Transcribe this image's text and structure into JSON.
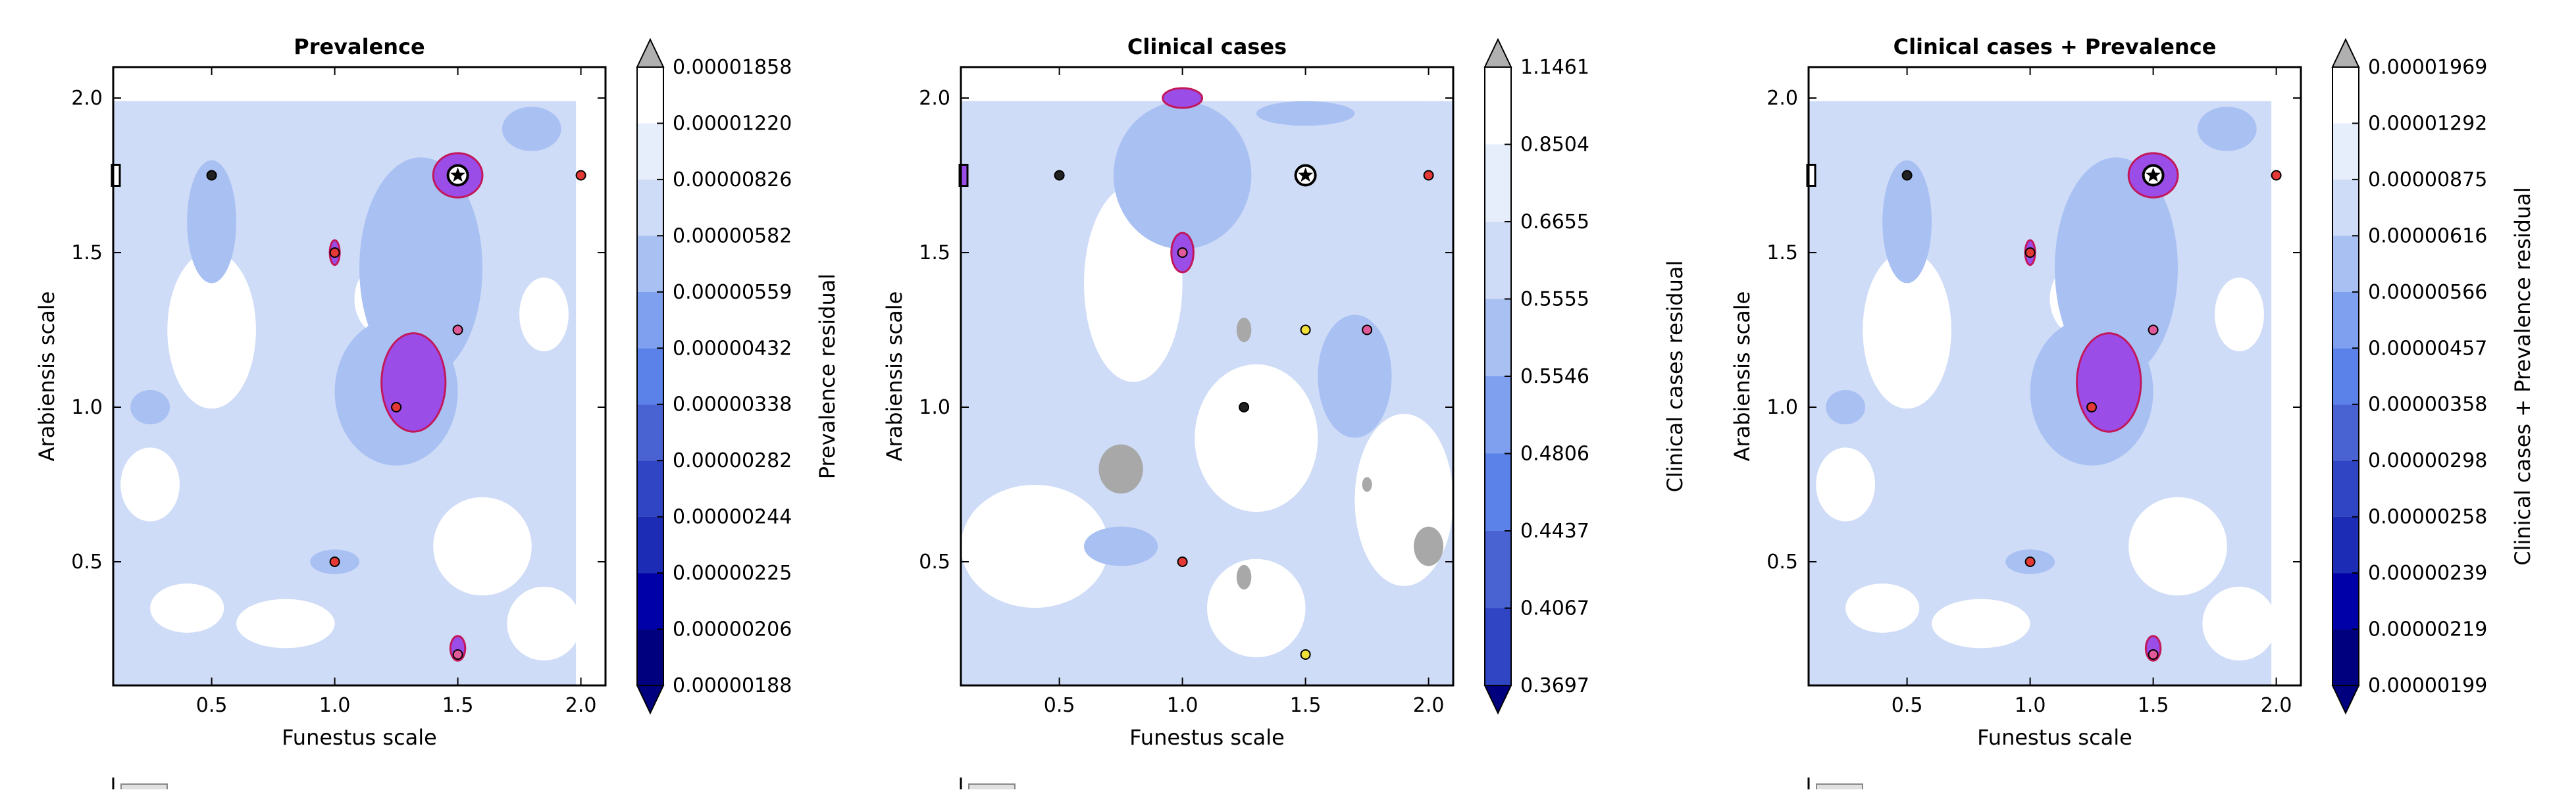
{
  "figure": {
    "background": "#ffffff",
    "colors": {
      "level_fills": [
        "#00007f",
        "#0000a8",
        "#1c2cb5",
        "#2f45c4",
        "#4a63d3",
        "#5b82e8",
        "#7ea0ee",
        "#a9c0f3",
        "#cfdcf7",
        "#e6eefb",
        "#ffffff"
      ],
      "over_color": "#b0b0b0",
      "under_color": "#00007f",
      "hotspot_fill": "#9b4de8",
      "hotspot_stroke": "#c2185b",
      "marker_black": "#222222",
      "marker_red": "#e53935",
      "marker_pink": "#e05a9a",
      "marker_yellow": "#f2e03a",
      "grey_blob": "#a8a8a8"
    }
  },
  "chart_data": [
    {
      "type": "contour",
      "title": "Prevalence",
      "xlabel": "Funestus scale",
      "ylabel": "Arabiensis scale",
      "xlim": [
        0.1,
        2.1
      ],
      "ylim": [
        0.1,
        2.1
      ],
      "xticks": [
        "0.5",
        "1.0",
        "1.5",
        "2.0"
      ],
      "yticks": [
        "0.5",
        "1.0",
        "1.5",
        "2.0"
      ],
      "colorbar": {
        "label": "Prevalence residual",
        "levels": [
          "0.00001858",
          "0.00001220",
          "0.00000826",
          "0.00000582",
          "0.00000559",
          "0.00000432",
          "0.00000338",
          "0.00000282",
          "0.00000244",
          "0.00000225",
          "0.00000206",
          "0.00000188"
        ]
      },
      "markers": [
        {
          "x": 0.5,
          "y": 1.75,
          "color": "black"
        },
        {
          "x": 1.5,
          "y": 1.75,
          "color": "star"
        },
        {
          "x": 2.0,
          "y": 1.75,
          "color": "red"
        },
        {
          "x": 1.0,
          "y": 1.5,
          "color": "red"
        },
        {
          "x": 1.5,
          "y": 1.25,
          "color": "pink"
        },
        {
          "x": 1.25,
          "y": 1.0,
          "color": "red"
        },
        {
          "x": 1.0,
          "y": 0.5,
          "color": "red"
        },
        {
          "x": 1.5,
          "y": 0.2,
          "color": "pink"
        }
      ],
      "hotspots": [
        {
          "x": 1.5,
          "y": 1.75,
          "rx": 0.1,
          "ry": 0.09
        },
        {
          "x": 1.32,
          "y": 1.08,
          "rx": 0.13,
          "ry": 0.2
        },
        {
          "x": 1.5,
          "y": 0.22,
          "rx": 0.03,
          "ry": 0.05
        },
        {
          "x": 1.0,
          "y": 1.5,
          "rx": 0.02,
          "ry": 0.05
        }
      ]
    },
    {
      "type": "contour",
      "title": "Clinical cases",
      "xlabel": "Funestus scale",
      "ylabel": "Arabiensis scale",
      "xlim": [
        0.1,
        2.1
      ],
      "ylim": [
        0.1,
        2.1
      ],
      "xticks": [
        "0.5",
        "1.0",
        "1.5",
        "2.0"
      ],
      "yticks": [
        "0.5",
        "1.0",
        "1.5",
        "2.0"
      ],
      "colorbar": {
        "label": "Clinical cases residual",
        "levels": [
          "1.1461",
          "0.8504",
          "0.6655",
          "0.5555",
          "0.5546",
          "0.4806",
          "0.4437",
          "0.4067",
          "0.3697"
        ]
      },
      "markers": [
        {
          "x": 0.5,
          "y": 1.75,
          "color": "black"
        },
        {
          "x": 1.5,
          "y": 1.75,
          "color": "star"
        },
        {
          "x": 2.0,
          "y": 1.75,
          "color": "red"
        },
        {
          "x": 1.0,
          "y": 1.5,
          "color": "pink"
        },
        {
          "x": 1.5,
          "y": 1.25,
          "color": "yellow"
        },
        {
          "x": 1.75,
          "y": 1.25,
          "color": "pink"
        },
        {
          "x": 1.25,
          "y": 1.0,
          "color": "black"
        },
        {
          "x": 1.0,
          "y": 0.5,
          "color": "red"
        },
        {
          "x": 1.5,
          "y": 0.2,
          "color": "yellow"
        }
      ],
      "hotspots": [
        {
          "x": 1.0,
          "y": 2.0,
          "rx": 0.08,
          "ry": 0.04
        },
        {
          "x": 1.0,
          "y": 1.5,
          "rx": 0.045,
          "ry": 0.08
        }
      ]
    },
    {
      "type": "contour",
      "title": "Clinical cases + Prevalence",
      "xlabel": "Funestus scale",
      "ylabel": "Arabiensis scale",
      "xlim": [
        0.1,
        2.1
      ],
      "ylim": [
        0.1,
        2.1
      ],
      "xticks": [
        "0.5",
        "1.0",
        "1.5",
        "2.0"
      ],
      "yticks": [
        "0.5",
        "1.0",
        "1.5",
        "2.0"
      ],
      "colorbar": {
        "label": "Clinical cases + Prevalence residual",
        "levels": [
          "0.00001969",
          "0.00001292",
          "0.00000875",
          "0.00000616",
          "0.00000566",
          "0.00000457",
          "0.00000358",
          "0.00000298",
          "0.00000258",
          "0.00000239",
          "0.00000219",
          "0.00000199"
        ]
      },
      "markers": [
        {
          "x": 0.5,
          "y": 1.75,
          "color": "black"
        },
        {
          "x": 1.5,
          "y": 1.75,
          "color": "star"
        },
        {
          "x": 2.0,
          "y": 1.75,
          "color": "red"
        },
        {
          "x": 1.0,
          "y": 1.5,
          "color": "red"
        },
        {
          "x": 1.5,
          "y": 1.25,
          "color": "pink"
        },
        {
          "x": 1.25,
          "y": 1.0,
          "color": "red"
        },
        {
          "x": 1.0,
          "y": 0.5,
          "color": "red"
        },
        {
          "x": 1.5,
          "y": 0.2,
          "color": "pink"
        }
      ],
      "hotspots": [
        {
          "x": 1.5,
          "y": 1.75,
          "rx": 0.1,
          "ry": 0.09
        },
        {
          "x": 1.32,
          "y": 1.08,
          "rx": 0.13,
          "ry": 0.2
        },
        {
          "x": 1.5,
          "y": 0.22,
          "rx": 0.03,
          "ry": 0.05
        },
        {
          "x": 1.0,
          "y": 1.5,
          "rx": 0.02,
          "ry": 0.05
        }
      ]
    }
  ]
}
